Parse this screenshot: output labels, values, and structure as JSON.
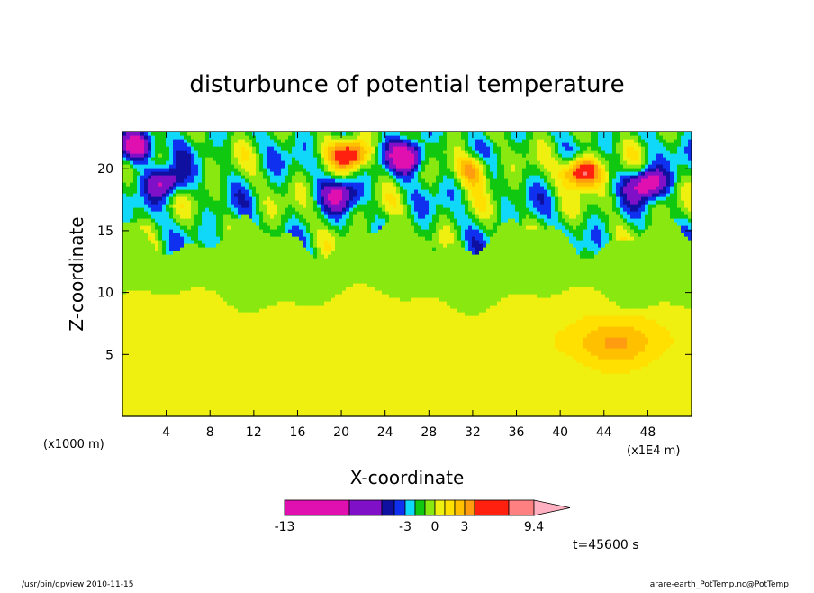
{
  "chart_data": {
    "type": "heatmap",
    "title": "disturbunce of potential temperature",
    "xlabel": "X-coordinate",
    "ylabel": "Z-coordinate",
    "x_unit": "(x1E4 m)",
    "y_unit": "(x1000 m)",
    "xlim": [
      0,
      52
    ],
    "ylim": [
      0,
      23
    ],
    "x_ticks": [
      4,
      8,
      12,
      16,
      20,
      24,
      28,
      32,
      36,
      40,
      44,
      48
    ],
    "y_ticks": [
      5,
      10,
      15,
      20
    ],
    "time_label": "t=45600 s",
    "colorbar": {
      "levels": [
        -13,
        -7,
        -5,
        -4,
        -3,
        -2,
        -1,
        0,
        1,
        2,
        3,
        4,
        6,
        9.4
      ],
      "tick_labels": [
        "-13",
        "-3",
        "0",
        "3",
        "9.4"
      ],
      "tick_values": [
        -13,
        -3,
        0,
        3,
        9.4
      ],
      "colors": [
        "#e010b0",
        "#7f10c8",
        "#1010a0",
        "#1030f0",
        "#10d8f8",
        "#10c810",
        "#88e810",
        "#f0f010",
        "#ffe000",
        "#ffc000",
        "#ff9c10",
        "#ff2010",
        "#ff8080",
        "#ffb0c0"
      ],
      "extend_max": true
    },
    "regions": {
      "lower_layer_value": 0.5,
      "mid_layer_value": -0.3,
      "upper_band_value": -1.5,
      "warm_pool": {
        "x": 45,
        "z": 6,
        "value": 2.5
      }
    },
    "notable_features": [
      {
        "label": "cold core",
        "x": 1.2,
        "z": 21.8,
        "value": -8
      },
      {
        "label": "cold core",
        "x": 4.0,
        "z": 19.0,
        "value": -6
      },
      {
        "label": "warm core",
        "x": 21.0,
        "z": 21.2,
        "value": 7
      },
      {
        "label": "cold core",
        "x": 26.0,
        "z": 21.0,
        "value": -8
      },
      {
        "label": "cold core",
        "x": 20.0,
        "z": 18.0,
        "value": -5
      },
      {
        "label": "warm core",
        "x": 32.0,
        "z": 20.0,
        "value": 5
      },
      {
        "label": "warm core",
        "x": 42.0,
        "z": 19.8,
        "value": 9
      },
      {
        "label": "cold core",
        "x": 48.0,
        "z": 18.8,
        "value": -8
      }
    ]
  },
  "footer": {
    "left": "/usr/bin/gpview  2010-11-15",
    "right": "arare-earth_PotTemp.nc@PotTemp"
  }
}
